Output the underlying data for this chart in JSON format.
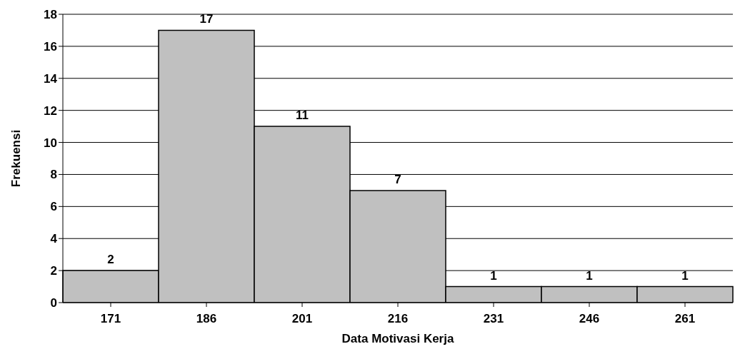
{
  "chart_data": {
    "type": "bar",
    "xlabel": "Data Motivasi Kerja",
    "ylabel": "Frekuensi",
    "categories": [
      "171",
      "186",
      "201",
      "216",
      "231",
      "246",
      "261"
    ],
    "values": [
      2,
      17,
      11,
      7,
      1,
      1,
      1
    ],
    "color": "#c0c0c0",
    "ylim": [
      0,
      18
    ],
    "yticks": [
      0,
      2,
      4,
      6,
      8,
      10,
      12,
      14,
      16,
      18
    ],
    "grid": "y",
    "data_labels": true
  }
}
